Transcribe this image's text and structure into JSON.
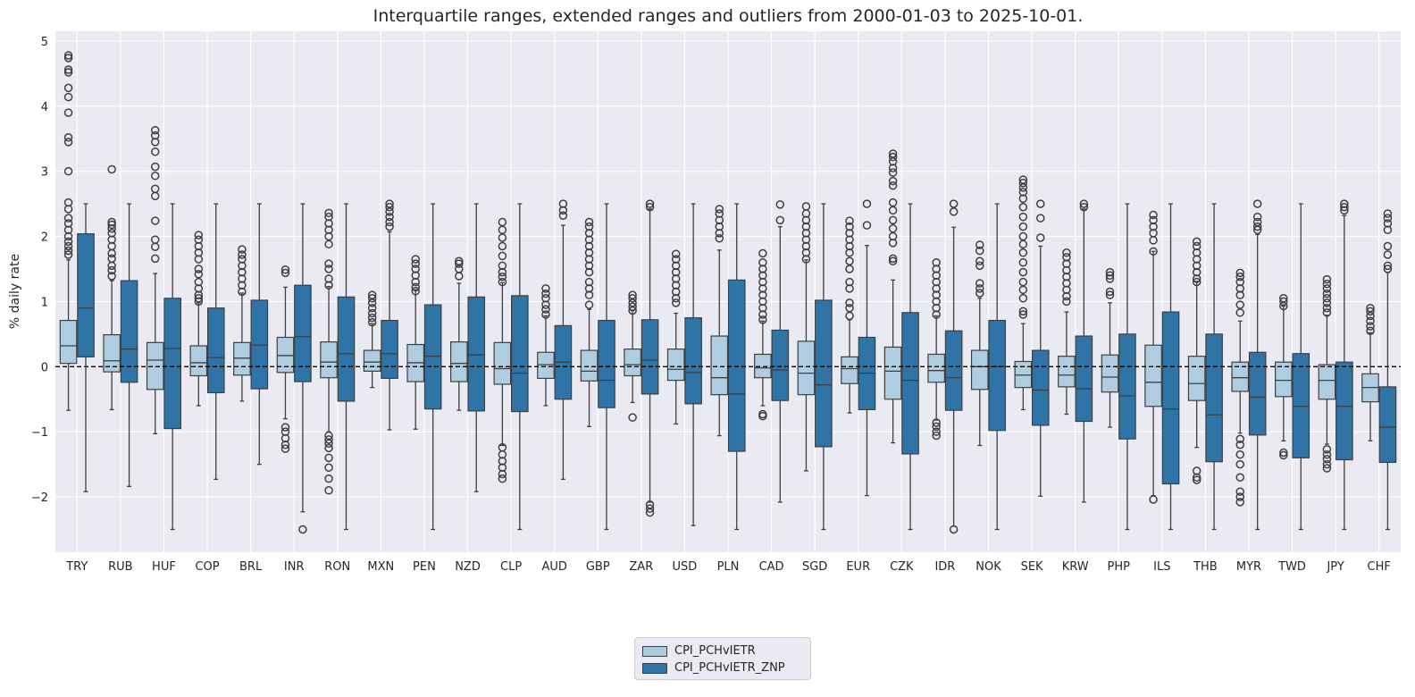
{
  "chart_data": {
    "type": "boxplot",
    "title": "Interquartile ranges, extended ranges and outliers from 2000-01-03 to 2025-10-01.",
    "xlabel": "",
    "ylabel": "% daily rate",
    "ylim": [
      -2.85,
      5.15
    ],
    "yticks": [
      -2,
      -1,
      0,
      1,
      2,
      3,
      4,
      5
    ],
    "ytick_labels": [
      "−2",
      "−1",
      "0",
      "1",
      "2",
      "3",
      "4",
      "5"
    ],
    "grid": true,
    "reference_line": {
      "y": 0,
      "style": "dashed",
      "color": "#000000"
    },
    "legend_position": "bottom-center",
    "categories": [
      "TRY",
      "RUB",
      "HUF",
      "COP",
      "BRL",
      "INR",
      "RON",
      "MXN",
      "PEN",
      "NZD",
      "CLP",
      "AUD",
      "GBP",
      "ZAR",
      "USD",
      "PLN",
      "CAD",
      "SGD",
      "EUR",
      "CZK",
      "IDR",
      "NOK",
      "SEK",
      "KRW",
      "PHP",
      "ILS",
      "THB",
      "MYR",
      "TWD",
      "JPY",
      "CHF"
    ],
    "box_fields": [
      "whisker_low",
      "q1",
      "median",
      "q3",
      "whisker_high"
    ],
    "series": [
      {
        "name": "CPI_PCHvIETR",
        "color": "#aecde0",
        "boxes": [
          [
            -0.67,
            0.05,
            0.32,
            0.71,
            1.64
          ],
          [
            -0.66,
            -0.08,
            0.09,
            0.49,
            1.32
          ],
          [
            -1.03,
            -0.35,
            0.1,
            0.37,
            1.43
          ],
          [
            -0.6,
            -0.14,
            0.06,
            0.32,
            0.98
          ],
          [
            -0.53,
            -0.13,
            0.13,
            0.37,
            1.13
          ],
          [
            -0.8,
            -0.09,
            0.17,
            0.45,
            1.22
          ],
          [
            -1.0,
            -0.17,
            0.07,
            0.38,
            1.23
          ],
          [
            -0.32,
            -0.07,
            0.07,
            0.25,
            0.66
          ],
          [
            -0.96,
            -0.23,
            0.06,
            0.34,
            1.18
          ],
          [
            -0.67,
            -0.23,
            0.05,
            0.38,
            1.28
          ],
          [
            -1.21,
            -0.27,
            -0.03,
            0.37,
            1.29
          ],
          [
            -0.6,
            -0.18,
            0.03,
            0.22,
            0.78
          ],
          [
            -0.92,
            -0.22,
            -0.07,
            0.25,
            0.88
          ],
          [
            -0.55,
            -0.14,
            0.03,
            0.27,
            0.86
          ],
          [
            -0.88,
            -0.21,
            -0.04,
            0.27,
            0.82
          ],
          [
            -1.06,
            -0.43,
            -0.17,
            0.47,
            1.79
          ],
          [
            -0.6,
            -0.17,
            -0.02,
            0.19,
            0.7
          ],
          [
            -1.6,
            -0.43,
            -0.1,
            0.39,
            1.64
          ],
          [
            -0.71,
            -0.26,
            -0.03,
            0.15,
            0.72
          ],
          [
            -1.17,
            -0.5,
            -0.07,
            0.3,
            1.33
          ],
          [
            -0.82,
            -0.24,
            -0.06,
            0.19,
            0.78
          ],
          [
            -1.21,
            -0.35,
            0.0,
            0.25,
            1.05
          ],
          [
            -0.66,
            -0.32,
            -0.13,
            0.08,
            0.66
          ],
          [
            -0.73,
            -0.31,
            -0.13,
            0.16,
            0.84
          ],
          [
            -0.93,
            -0.39,
            -0.16,
            0.18,
            0.98
          ],
          [
            -1.98,
            -0.61,
            -0.24,
            0.33,
            1.77
          ],
          [
            -1.24,
            -0.52,
            -0.26,
            0.16,
            1.31
          ],
          [
            -1.02,
            -0.38,
            -0.17,
            0.07,
            0.7
          ],
          [
            -1.14,
            -0.46,
            -0.21,
            0.07,
            0.93
          ],
          [
            -1.19,
            -0.5,
            -0.21,
            0.03,
            0.79
          ],
          [
            -1.14,
            -0.54,
            -0.32,
            -0.11,
            0.52
          ]
        ],
        "outliers": [
          [
            1.72,
            1.78,
            1.85,
            1.92,
            2.0,
            2.1,
            2.2,
            2.28,
            2.42,
            2.52,
            3.0,
            3.45,
            3.52,
            3.9,
            4.14,
            4.28,
            4.52,
            4.56,
            4.74,
            4.78
          ],
          [
            1.39,
            1.48,
            1.55,
            1.66,
            1.74,
            1.85,
            1.95,
            2.05,
            2.12,
            2.18,
            2.22,
            3.03
          ],
          [
            1.66,
            1.84,
            1.95,
            2.24,
            2.62,
            2.73,
            2.93,
            3.07,
            3.3,
            3.45,
            3.55,
            3.63
          ],
          [
            1.0,
            1.05,
            1.1,
            1.2,
            1.3,
            1.42,
            1.5,
            1.65,
            1.75,
            1.85,
            1.95,
            2.02
          ],
          [
            1.15,
            1.25,
            1.35,
            1.45,
            1.55,
            1.65,
            1.72,
            1.8
          ],
          [
            1.44,
            1.49,
            -0.93,
            -1.0,
            -1.1,
            -1.2,
            -1.26
          ],
          [
            1.25,
            1.35,
            1.5,
            1.58,
            1.88,
            2.0,
            2.1,
            2.2,
            2.3,
            2.36,
            -1.06,
            -1.12,
            -1.18,
            -1.25,
            -1.4,
            -1.55,
            -1.72,
            -1.9
          ],
          [
            0.68,
            0.75,
            0.82,
            0.9,
            0.98,
            1.05,
            1.1
          ],
          [
            1.16,
            1.22,
            1.3,
            1.4,
            1.5,
            1.58,
            1.65
          ],
          [
            1.39,
            1.5,
            1.58,
            1.62
          ],
          [
            1.3,
            1.38,
            1.45,
            1.55,
            1.7,
            1.85,
            1.98,
            2.1,
            2.22,
            -1.24,
            -1.35,
            -1.45,
            -1.55,
            -1.65,
            -1.72
          ],
          [
            0.8,
            0.88,
            0.95,
            1.05,
            1.12,
            1.2
          ],
          [
            0.95,
            1.1,
            1.2,
            1.3,
            1.45,
            1.55,
            1.65,
            1.75,
            1.85,
            1.95,
            2.05,
            2.15,
            2.22
          ],
          [
            0.86,
            0.92,
            0.98,
            1.05,
            1.1,
            -0.78
          ],
          [
            0.98,
            1.05,
            1.15,
            1.25,
            1.35,
            1.45,
            1.55,
            1.65,
            1.73
          ],
          [
            1.97,
            2.05,
            2.15,
            2.25,
            2.35,
            2.42
          ],
          [
            0.72,
            0.8,
            0.9,
            1.0,
            1.1,
            1.2,
            1.3,
            1.4,
            1.5,
            1.6,
            1.74,
            -0.73,
            -0.76
          ],
          [
            1.65,
            1.75,
            1.85,
            1.95,
            2.05,
            2.15,
            2.25,
            2.35,
            2.46
          ],
          [
            0.78,
            0.9,
            0.98,
            1.2,
            1.3,
            1.5,
            1.62,
            1.75,
            1.85,
            1.95,
            2.05,
            2.15,
            2.24
          ],
          [
            1.62,
            1.66,
            1.9,
            2.0,
            2.12,
            2.25,
            2.4,
            2.52,
            2.78,
            2.85,
            2.98,
            3.05,
            3.15,
            3.22,
            3.27
          ],
          [
            0.8,
            0.9,
            1.0,
            1.1,
            1.2,
            1.3,
            1.4,
            1.5,
            1.6,
            -0.86,
            -0.92,
            -1.0,
            -1.06
          ],
          [
            1.13,
            1.2,
            1.28,
            1.55,
            1.62,
            1.78,
            1.87
          ],
          [
            0.8,
            0.85,
            1.05,
            1.18,
            1.3,
            1.45,
            1.6,
            1.75,
            1.88,
            2.0,
            2.15,
            2.3,
            2.45,
            2.58,
            2.68,
            2.75,
            2.82,
            2.87
          ],
          [
            1.0,
            1.08,
            1.18,
            1.28,
            1.38,
            1.48,
            1.58,
            1.68,
            1.75
          ],
          [
            1.1,
            1.15,
            1.35,
            1.4,
            1.45
          ],
          [
            1.77,
            1.94,
            2.05,
            2.15,
            2.25,
            2.33,
            -2.04
          ],
          [
            1.3,
            1.35,
            1.45,
            1.55,
            1.65,
            1.75,
            1.85,
            1.92,
            -1.6,
            -1.7,
            -1.74
          ],
          [
            0.83,
            0.95,
            1.1,
            1.2,
            1.3,
            1.38,
            1.44,
            -1.11,
            -1.2,
            -1.35,
            -1.5,
            -1.7,
            -1.92,
            -2.0,
            -2.08
          ],
          [
            0.93,
            1.0,
            1.05,
            -1.32,
            -1.36
          ],
          [
            0.83,
            0.9,
            0.98,
            1.05,
            1.12,
            1.2,
            1.27,
            1.34,
            -1.27,
            -1.35,
            -1.42,
            -1.5,
            -1.56
          ],
          [
            0.55,
            0.62,
            0.7,
            0.78,
            0.85,
            0.9
          ]
        ]
      },
      {
        "name": "CPI_PCHvIETR_ZNP",
        "color": "#2f74a6",
        "boxes": [
          [
            -1.92,
            0.15,
            0.9,
            2.04,
            2.5
          ],
          [
            -1.84,
            -0.24,
            0.27,
            1.32,
            2.5
          ],
          [
            -2.5,
            -0.95,
            0.28,
            1.05,
            2.5
          ],
          [
            -1.73,
            -0.4,
            0.14,
            0.9,
            2.5
          ],
          [
            -1.5,
            -0.34,
            0.33,
            1.02,
            2.5
          ],
          [
            -2.23,
            -0.23,
            0.46,
            1.25,
            2.5
          ],
          [
            -2.5,
            -0.53,
            0.2,
            1.07,
            2.5
          ],
          [
            -0.97,
            -0.18,
            0.2,
            0.71,
            2.07
          ],
          [
            -2.5,
            -0.65,
            0.16,
            0.95,
            2.5
          ],
          [
            -1.92,
            -0.68,
            0.18,
            1.07,
            2.5
          ],
          [
            -2.5,
            -0.69,
            -0.1,
            1.09,
            2.5
          ],
          [
            -1.73,
            -0.5,
            0.07,
            0.63,
            2.17
          ],
          [
            -2.5,
            -0.63,
            -0.21,
            0.71,
            2.5
          ],
          [
            -2.08,
            -0.42,
            0.1,
            0.72,
            2.42
          ],
          [
            -2.44,
            -0.57,
            -0.09,
            0.75,
            2.5
          ],
          [
            -2.5,
            -1.3,
            -0.42,
            1.33,
            2.5
          ],
          [
            -2.08,
            -0.52,
            -0.05,
            0.56,
            2.15
          ],
          [
            -2.5,
            -1.23,
            -0.28,
            1.02,
            2.5
          ],
          [
            -1.98,
            -0.66,
            -0.1,
            0.45,
            1.86
          ],
          [
            -2.5,
            -1.34,
            -0.21,
            0.83,
            2.5
          ],
          [
            -2.45,
            -0.67,
            -0.17,
            0.55,
            2.14
          ],
          [
            -2.5,
            -0.98,
            0.0,
            0.71,
            2.5
          ],
          [
            -1.99,
            -0.9,
            -0.36,
            0.25,
            1.85
          ],
          [
            -2.08,
            -0.84,
            -0.34,
            0.47,
            2.42
          ],
          [
            -2.5,
            -1.11,
            -0.45,
            0.5,
            2.5
          ],
          [
            -2.5,
            -1.8,
            -0.65,
            0.84,
            2.5
          ],
          [
            -2.5,
            -1.46,
            -0.74,
            0.5,
            2.5
          ],
          [
            -2.5,
            -1.05,
            -0.47,
            0.22,
            2.03
          ],
          [
            -2.5,
            -1.4,
            -0.61,
            0.2,
            2.5
          ],
          [
            -2.5,
            -1.43,
            -0.61,
            0.07,
            2.32
          ],
          [
            -2.5,
            -1.47,
            -0.93,
            -0.31,
            1.45
          ]
        ],
        "outliers": [
          [],
          [],
          [],
          [],
          [],
          [
            -2.5
          ],
          [],
          [
            2.15,
            2.22,
            2.3,
            2.38,
            2.45,
            2.5
          ],
          [],
          [],
          [],
          [
            2.32,
            2.4,
            2.5
          ],
          [],
          [
            2.45,
            2.5,
            -2.12,
            -2.18,
            -2.24
          ],
          [],
          [],
          [
            2.25,
            2.49
          ],
          [],
          [
            2.17,
            2.5
          ],
          [],
          [
            2.38,
            2.5,
            -2.5
          ],
          [],
          [
            1.98,
            2.28,
            2.5
          ],
          [
            2.45,
            2.5
          ],
          [],
          [],
          [],
          [
            2.1,
            2.15,
            2.22,
            2.3,
            2.5
          ],
          [],
          [
            2.4,
            2.45,
            2.5
          ],
          [
            1.5,
            1.55,
            1.72,
            1.85,
            2.1,
            2.2,
            2.28,
            2.35
          ]
        ]
      }
    ]
  }
}
